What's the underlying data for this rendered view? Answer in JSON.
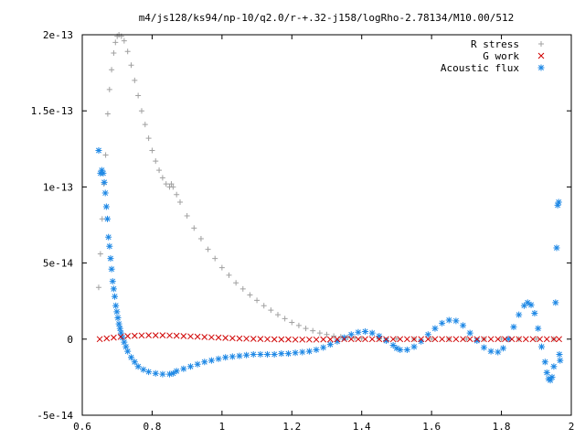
{
  "chart_data": {
    "type": "scatter",
    "title": "m4/js128/ks94/np-10/q2.0/r-+.32-j158/logRho-2.78134/M10.00/512",
    "xlabel": "",
    "ylabel": "",
    "xlim": [
      0.6,
      2.0
    ],
    "ylim": [
      -5e-14,
      2e-13
    ],
    "xticks": [
      0.6,
      0.8,
      1.0,
      1.2,
      1.4,
      1.6,
      1.8,
      2.0
    ],
    "xtick_labels": [
      "0.6",
      "0.8",
      "1",
      "1.2",
      "1.4",
      "1.6",
      "1.8",
      "2"
    ],
    "yticks": [
      -5e-14,
      0,
      5e-14,
      1e-13,
      1.5e-13,
      2e-13
    ],
    "ytick_labels": [
      "-5e-14",
      "0",
      "5e-14",
      "1e-13",
      "1.5e-13",
      "2e-13"
    ],
    "grid": false,
    "legend_position": "top-right",
    "series": [
      {
        "name": "R stress",
        "marker": "plus",
        "color": "#a0a0a0",
        "points": [
          [
            0.647,
            3.4e-14
          ],
          [
            0.652,
            5.6e-14
          ],
          [
            0.657,
            7.9e-14
          ],
          [
            0.662,
            1.02e-13
          ],
          [
            0.667,
            1.21e-13
          ],
          [
            0.673,
            1.48e-13
          ],
          [
            0.678,
            1.64e-13
          ],
          [
            0.684,
            1.77e-13
          ],
          [
            0.69,
            1.88e-13
          ],
          [
            0.695,
            1.95e-13
          ],
          [
            0.7,
            1.99e-13
          ],
          [
            0.705,
            2e-13
          ],
          [
            0.712,
            1.99e-13
          ],
          [
            0.72,
            1.96e-13
          ],
          [
            0.73,
            1.89e-13
          ],
          [
            0.74,
            1.8e-13
          ],
          [
            0.75,
            1.7e-13
          ],
          [
            0.76,
            1.6e-13
          ],
          [
            0.77,
            1.5e-13
          ],
          [
            0.78,
            1.41e-13
          ],
          [
            0.79,
            1.32e-13
          ],
          [
            0.8,
            1.24e-13
          ],
          [
            0.81,
            1.17e-13
          ],
          [
            0.82,
            1.11e-13
          ],
          [
            0.83,
            1.06e-13
          ],
          [
            0.84,
            1.02e-13
          ],
          [
            0.85,
            1e-13
          ],
          [
            0.855,
            1.02e-13
          ],
          [
            0.86,
            1e-13
          ],
          [
            0.87,
            9.5e-14
          ],
          [
            0.88,
            9e-14
          ],
          [
            0.9,
            8.1e-14
          ],
          [
            0.92,
            7.3e-14
          ],
          [
            0.94,
            6.6e-14
          ],
          [
            0.96,
            5.9e-14
          ],
          [
            0.98,
            5.3e-14
          ],
          [
            1.0,
            4.7e-14
          ],
          [
            1.02,
            4.2e-14
          ],
          [
            1.04,
            3.7e-14
          ],
          [
            1.06,
            3.3e-14
          ],
          [
            1.08,
            2.9e-14
          ],
          [
            1.1,
            2.55e-14
          ],
          [
            1.12,
            2.2e-14
          ],
          [
            1.14,
            1.9e-14
          ],
          [
            1.16,
            1.6e-14
          ],
          [
            1.18,
            1.35e-14
          ],
          [
            1.2,
            1.1e-14
          ],
          [
            1.22,
            9e-15
          ],
          [
            1.24,
            7e-15
          ],
          [
            1.26,
            5.5e-15
          ],
          [
            1.28,
            4e-15
          ],
          [
            1.3,
            3e-15
          ],
          [
            1.32,
            2e-15
          ],
          [
            1.34,
            1.5e-15
          ],
          [
            1.36,
            1e-15
          ],
          [
            1.38,
            6e-16
          ],
          [
            1.4,
            4e-16
          ],
          [
            1.45,
            2e-16
          ],
          [
            1.5,
            1e-16
          ],
          [
            1.55,
            0.0
          ],
          [
            1.6,
            0.0
          ],
          [
            1.65,
            0.0
          ],
          [
            1.7,
            0.0
          ],
          [
            1.75,
            0.0
          ],
          [
            1.8,
            0.0
          ],
          [
            1.85,
            0.0
          ],
          [
            1.9,
            0.0
          ],
          [
            1.95,
            0.0
          ]
        ]
      },
      {
        "name": "G work",
        "marker": "cross",
        "color": "#d00000",
        "points": [
          [
            0.65,
            0.0
          ],
          [
            0.67,
            5e-16
          ],
          [
            0.69,
            1e-15
          ],
          [
            0.71,
            1.5e-15
          ],
          [
            0.73,
            2e-15
          ],
          [
            0.75,
            2.2e-15
          ],
          [
            0.77,
            2.4e-15
          ],
          [
            0.79,
            2.5e-15
          ],
          [
            0.81,
            2.5e-15
          ],
          [
            0.83,
            2.5e-15
          ],
          [
            0.85,
            2.4e-15
          ],
          [
            0.87,
            2.2e-15
          ],
          [
            0.89,
            2e-15
          ],
          [
            0.91,
            1.8e-15
          ],
          [
            0.93,
            1.6e-15
          ],
          [
            0.95,
            1.4e-15
          ],
          [
            0.97,
            1.2e-15
          ],
          [
            0.99,
            1e-15
          ],
          [
            1.01,
            8e-16
          ],
          [
            1.03,
            6e-16
          ],
          [
            1.05,
            4e-16
          ],
          [
            1.07,
            3e-16
          ],
          [
            1.09,
            2e-16
          ],
          [
            1.11,
            1e-16
          ],
          [
            1.13,
            0.0
          ],
          [
            1.15,
            -1e-16
          ],
          [
            1.17,
            -2e-16
          ],
          [
            1.19,
            -2e-16
          ],
          [
            1.21,
            -3e-16
          ],
          [
            1.23,
            -3e-16
          ],
          [
            1.25,
            -3e-16
          ],
          [
            1.27,
            -3e-16
          ],
          [
            1.29,
            -2e-16
          ],
          [
            1.31,
            -2e-16
          ],
          [
            1.33,
            -1e-16
          ],
          [
            1.35,
            0.0
          ],
          [
            1.37,
            0.0
          ],
          [
            1.39,
            0.0
          ],
          [
            1.41,
            0.0
          ],
          [
            1.43,
            0.0
          ],
          [
            1.45,
            0.0
          ],
          [
            1.47,
            0.0
          ],
          [
            1.49,
            0.0
          ],
          [
            1.51,
            0.0
          ],
          [
            1.53,
            0.0
          ],
          [
            1.55,
            0.0
          ],
          [
            1.57,
            0.0
          ],
          [
            1.59,
            0.0
          ],
          [
            1.61,
            0.0
          ],
          [
            1.63,
            0.0
          ],
          [
            1.65,
            0.0
          ],
          [
            1.67,
            0.0
          ],
          [
            1.69,
            0.0
          ],
          [
            1.71,
            0.0
          ],
          [
            1.73,
            0.0
          ],
          [
            1.75,
            0.0
          ],
          [
            1.77,
            0.0
          ],
          [
            1.79,
            0.0
          ],
          [
            1.81,
            0.0
          ],
          [
            1.83,
            0.0
          ],
          [
            1.85,
            0.0
          ],
          [
            1.87,
            0.0
          ],
          [
            1.89,
            0.0
          ],
          [
            1.91,
            0.0
          ],
          [
            1.93,
            0.0
          ],
          [
            1.95,
            0.0
          ],
          [
            1.965,
            0.0
          ]
        ]
      },
      {
        "name": "Acoustic flux",
        "marker": "star",
        "color": "#1e88e5",
        "points": [
          [
            0.647,
            1.24e-13
          ],
          [
            0.652,
            1.09e-13
          ],
          [
            0.656,
            1.11e-13
          ],
          [
            0.66,
            1.09e-13
          ],
          [
            0.663,
            1.03e-13
          ],
          [
            0.666,
            9.6e-14
          ],
          [
            0.669,
            8.7e-14
          ],
          [
            0.672,
            7.9e-14
          ],
          [
            0.675,
            6.7e-14
          ],
          [
            0.678,
            6.1e-14
          ],
          [
            0.681,
            5.3e-14
          ],
          [
            0.684,
            4.6e-14
          ],
          [
            0.687,
            3.8e-14
          ],
          [
            0.69,
            3.3e-14
          ],
          [
            0.693,
            2.8e-14
          ],
          [
            0.696,
            2.2e-14
          ],
          [
            0.699,
            1.8e-14
          ],
          [
            0.702,
            1.4e-14
          ],
          [
            0.705,
            1e-14
          ],
          [
            0.708,
            7e-15
          ],
          [
            0.711,
            4e-15
          ],
          [
            0.715,
            1e-15
          ],
          [
            0.72,
            -2e-15
          ],
          [
            0.725,
            -5e-15
          ],
          [
            0.73,
            -8e-15
          ],
          [
            0.74,
            -1.2e-14
          ],
          [
            0.75,
            -1.5e-14
          ],
          [
            0.76,
            -1.8e-14
          ],
          [
            0.775,
            -2e-14
          ],
          [
            0.79,
            -2.15e-14
          ],
          [
            0.81,
            -2.25e-14
          ],
          [
            0.83,
            -2.3e-14
          ],
          [
            0.85,
            -2.3e-14
          ],
          [
            0.86,
            -2.25e-14
          ],
          [
            0.87,
            -2.1e-14
          ],
          [
            0.89,
            -1.95e-14
          ],
          [
            0.91,
            -1.8e-14
          ],
          [
            0.93,
            -1.65e-14
          ],
          [
            0.95,
            -1.5e-14
          ],
          [
            0.97,
            -1.4e-14
          ],
          [
            0.99,
            -1.3e-14
          ],
          [
            1.01,
            -1.2e-14
          ],
          [
            1.03,
            -1.15e-14
          ],
          [
            1.05,
            -1.1e-14
          ],
          [
            1.07,
            -1.05e-14
          ],
          [
            1.09,
            -1e-14
          ],
          [
            1.11,
            -1e-14
          ],
          [
            1.13,
            -1e-14
          ],
          [
            1.15,
            -1e-14
          ],
          [
            1.17,
            -9.5e-15
          ],
          [
            1.19,
            -9.5e-15
          ],
          [
            1.21,
            -9e-15
          ],
          [
            1.23,
            -8.5e-15
          ],
          [
            1.25,
            -8e-15
          ],
          [
            1.27,
            -7e-15
          ],
          [
            1.29,
            -5.5e-15
          ],
          [
            1.31,
            -3.5e-15
          ],
          [
            1.33,
            -1.5e-15
          ],
          [
            1.35,
            1e-15
          ],
          [
            1.37,
            3e-15
          ],
          [
            1.39,
            4.5e-15
          ],
          [
            1.41,
            5e-15
          ],
          [
            1.43,
            4e-15
          ],
          [
            1.45,
            2e-15
          ],
          [
            1.47,
            -1e-15
          ],
          [
            1.49,
            -4e-15
          ],
          [
            1.5,
            -6e-15
          ],
          [
            1.51,
            -7e-15
          ],
          [
            1.53,
            -7e-15
          ],
          [
            1.55,
            -5e-15
          ],
          [
            1.57,
            -1.5e-15
          ],
          [
            1.59,
            3e-15
          ],
          [
            1.61,
            7e-15
          ],
          [
            1.63,
            1.05e-14
          ],
          [
            1.65,
            1.25e-14
          ],
          [
            1.67,
            1.2e-14
          ],
          [
            1.69,
            9e-15
          ],
          [
            1.71,
            4e-15
          ],
          [
            1.73,
            -1e-15
          ],
          [
            1.75,
            -5.5e-15
          ],
          [
            1.77,
            -8e-15
          ],
          [
            1.79,
            -8.5e-15
          ],
          [
            1.805,
            -6e-15
          ],
          [
            1.82,
            0.0
          ],
          [
            1.835,
            8e-15
          ],
          [
            1.85,
            1.6e-14
          ],
          [
            1.865,
            2.2e-14
          ],
          [
            1.875,
            2.4e-14
          ],
          [
            1.885,
            2.25e-14
          ],
          [
            1.895,
            1.7e-14
          ],
          [
            1.905,
            7e-15
          ],
          [
            1.915,
            -5e-15
          ],
          [
            1.925,
            -1.5e-14
          ],
          [
            1.93,
            -2.2e-14
          ],
          [
            1.935,
            -2.6e-14
          ],
          [
            1.94,
            -2.7e-14
          ],
          [
            1.945,
            -2.5e-14
          ],
          [
            1.95,
            -1.8e-14
          ],
          [
            1.955,
            2.4e-14
          ],
          [
            1.958,
            6e-14
          ],
          [
            1.961,
            8.8e-14
          ],
          [
            1.964,
            9e-14
          ],
          [
            1.966,
            -1e-14
          ],
          [
            1.968,
            -1.4e-14
          ]
        ]
      }
    ]
  }
}
